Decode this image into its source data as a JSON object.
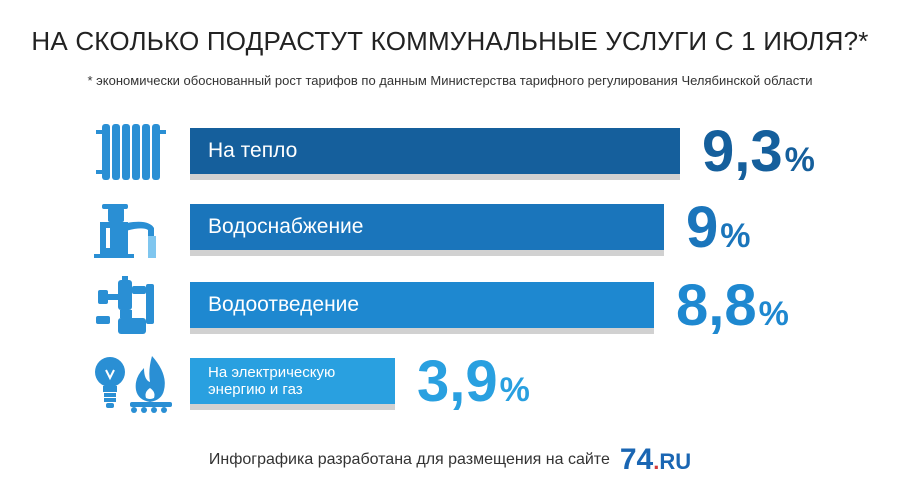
{
  "header": {
    "title": "НА СКОЛЬКО ПОДРАСТУТ КОММУНАЛЬНЫЕ УСЛУГИ С 1 ИЮЛЯ?*",
    "subtitle": "* экономически обоснованный рост тарифов по данным Министерства тарифного регулирования Челябинской области"
  },
  "chart_data": {
    "type": "bar",
    "title": "НА СКОЛЬКО ПОДРАСТУТ КОММУНАЛЬНЫЕ УСЛУГИ С 1 ИЮЛЯ?*",
    "subtitle": "* экономически обоснованный рост тарифов по данным Министерства тарифного регулирования Челябинской области",
    "categories": [
      "На тепло",
      "Водоснабжение",
      "Водоотведение",
      "На электрическую энергию и газ"
    ],
    "values": [
      9.3,
      9,
      8.8,
      3.9
    ],
    "value_labels": [
      "9,3",
      "9",
      "8,8",
      "3,9"
    ],
    "unit": "%",
    "orientation": "horizontal",
    "xlim": [
      0,
      9.3
    ],
    "grid": false,
    "legend": "none"
  },
  "icons": [
    "radiator-icon",
    "faucet-icon",
    "drain-pipe-icon",
    "lightbulb-gas-flame-icon"
  ],
  "colors": {
    "bars": [
      "#155f9c",
      "#1a75bb",
      "#1e88d0",
      "#29a0e0"
    ],
    "values": [
      "#155f9c",
      "#1a75bb",
      "#1e88d0",
      "#29a0e0"
    ],
    "icon": "#2a8fd4"
  },
  "footer": {
    "text": "Инфографика разработана для размещения на сайте",
    "logo_number": "74",
    "logo_dot": ".",
    "logo_domain": "RU"
  }
}
